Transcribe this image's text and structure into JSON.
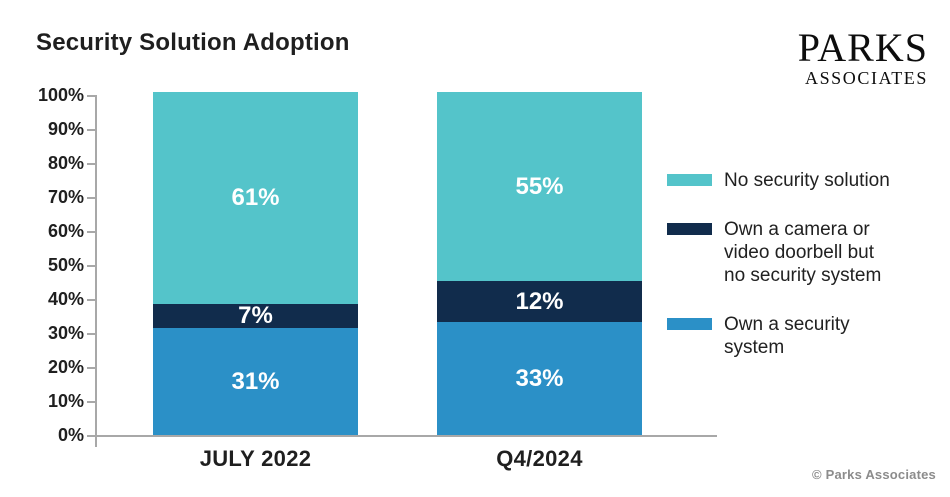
{
  "title": "Security Solution Adoption",
  "logo": {
    "line1": "PARKS",
    "line2": "ASSOCIATES"
  },
  "footer": {
    "copyright": "© Parks Associates"
  },
  "colors": {
    "teal": "#54C4CA",
    "navy": "#112C4C",
    "blue": "#2B90C7",
    "axis": "#A8A8A8",
    "text": "#1F1F1F",
    "bar_label": "#FFFFFF",
    "copyright": "#8C8C8C"
  },
  "chart_data": {
    "type": "bar",
    "stacked": true,
    "title": "Security Solution Adoption",
    "categories": [
      "JULY 2022",
      "Q4/2024"
    ],
    "series": [
      {
        "name": "Own a security system",
        "color_key": "blue",
        "values": [
          31,
          33
        ],
        "data_labels": [
          "31%",
          "33%"
        ]
      },
      {
        "name": "Own a camera or video doorbell but no security system",
        "color_key": "navy",
        "values": [
          7,
          12
        ],
        "data_labels": [
          "7%",
          "12%"
        ]
      },
      {
        "name": "No security solution",
        "color_key": "teal",
        "values": [
          61,
          55
        ],
        "data_labels": [
          "61%",
          "55%"
        ]
      }
    ],
    "xlabel": "",
    "ylabel": "",
    "ylim": [
      0,
      100
    ],
    "ytick_labels": [
      "0%",
      "10%",
      "20%",
      "30%",
      "40%",
      "50%",
      "60%",
      "70%",
      "80%",
      "90%",
      "100%"
    ],
    "grid": false,
    "legend_position": "right",
    "legend": [
      {
        "color_key": "teal",
        "lines": [
          "No security solution"
        ]
      },
      {
        "color_key": "navy",
        "lines": [
          "Own a camera or",
          "video doorbell but",
          "no security system"
        ]
      },
      {
        "color_key": "blue",
        "lines": [
          "Own a security",
          "system"
        ]
      }
    ]
  }
}
